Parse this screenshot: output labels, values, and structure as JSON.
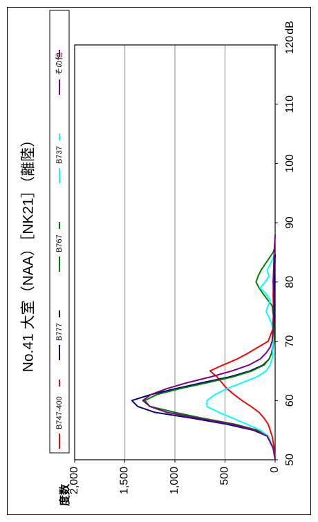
{
  "chart_data": {
    "type": "line",
    "title": "No.41 大室（NAA）［NK21］（離陸）",
    "xlabel": "dB",
    "ylabel": "度数",
    "xlim": [
      50,
      120
    ],
    "ylim": [
      0,
      2000
    ],
    "x_ticks": [
      "50",
      "60",
      "70",
      "80",
      "90",
      "100",
      "110",
      "120"
    ],
    "y_ticks": [
      "0",
      "500",
      "1,000",
      "1,500",
      "2,000"
    ],
    "grid": true,
    "legend_position": "top",
    "colors": {
      "B747-400": "#ff0000",
      "B777": "#000080",
      "B767": "#008000",
      "B737": "#00ffff",
      "その他": "#800080"
    },
    "series": [
      {
        "name": "B747-400",
        "x": [
          50,
          52,
          54,
          56,
          57,
          58,
          59,
          60,
          61,
          62,
          63,
          64,
          65,
          66,
          67,
          68,
          69,
          70,
          72,
          75,
          78,
          80,
          82,
          85
        ],
        "y": [
          0,
          10,
          30,
          70,
          110,
          160,
          240,
          330,
          410,
          480,
          530,
          580,
          650,
          520,
          380,
          270,
          170,
          70,
          25,
          15,
          20,
          15,
          10,
          0
        ]
      },
      {
        "name": "B777",
        "x": [
          50,
          52,
          54,
          55,
          56,
          57,
          58,
          59,
          60,
          61,
          62,
          63,
          64,
          65,
          66,
          67,
          68,
          69,
          70,
          72,
          75,
          78,
          80,
          82,
          85
        ],
        "y": [
          0,
          20,
          80,
          220,
          480,
          820,
          1200,
          1370,
          1430,
          1240,
          990,
          730,
          450,
          250,
          120,
          60,
          35,
          25,
          15,
          10,
          8,
          10,
          8,
          5,
          0
        ]
      },
      {
        "name": "B767",
        "x": [
          50,
          52,
          54,
          55,
          56,
          57,
          58,
          59,
          60,
          61,
          62,
          63,
          64,
          65,
          66,
          67,
          68,
          69,
          70,
          72,
          74,
          76,
          78,
          79,
          80,
          81,
          82,
          83,
          84,
          85,
          86
        ],
        "y": [
          0,
          20,
          70,
          180,
          400,
          720,
          1000,
          1250,
          1300,
          1180,
          950,
          680,
          420,
          230,
          110,
          60,
          35,
          20,
          12,
          10,
          15,
          30,
          120,
          160,
          190,
          170,
          140,
          100,
          60,
          20,
          0
        ]
      },
      {
        "name": "B737",
        "x": [
          50,
          52,
          54,
          55,
          56,
          57,
          58,
          59,
          60,
          61,
          62,
          63,
          64,
          65,
          66,
          67,
          68,
          70,
          72,
          73,
          74,
          75,
          76,
          77,
          78,
          79,
          80,
          81,
          82,
          83,
          84,
          85
        ],
        "y": [
          0,
          20,
          70,
          150,
          280,
          420,
          560,
          680,
          680,
          600,
          480,
          330,
          180,
          90,
          50,
          30,
          25,
          20,
          25,
          35,
          60,
          90,
          70,
          50,
          90,
          150,
          100,
          60,
          80,
          50,
          20,
          0
        ]
      },
      {
        "name": "その他",
        "x": [
          50,
          52,
          54,
          55,
          56,
          57,
          58,
          59,
          60,
          61,
          62,
          63,
          64,
          65,
          66,
          67,
          68,
          69,
          70,
          72,
          75,
          78,
          80,
          82,
          85,
          88
        ],
        "y": [
          0,
          20,
          80,
          200,
          430,
          760,
          1080,
          1250,
          1320,
          1240,
          1080,
          880,
          640,
          430,
          260,
          150,
          90,
          50,
          30,
          20,
          15,
          15,
          20,
          15,
          10,
          0
        ]
      }
    ]
  }
}
